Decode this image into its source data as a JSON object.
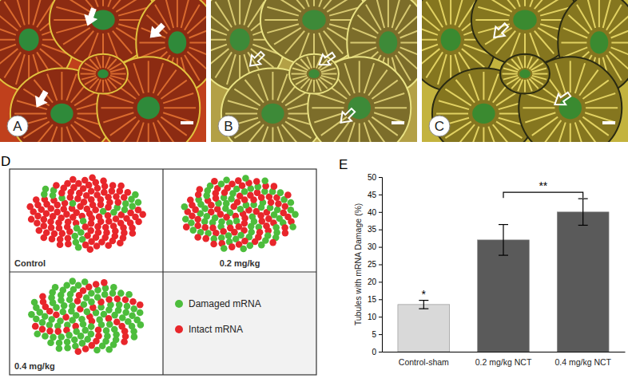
{
  "micrographs": [
    {
      "label": "A"
    },
    {
      "label": "B"
    },
    {
      "label": "C"
    }
  ],
  "schematic": {
    "label": "D",
    "groups": [
      {
        "name": "Control",
        "counts": [
          22,
          128
        ]
      },
      {
        "name": "0.2 mg/kg",
        "counts": [
          75,
          80
        ]
      },
      {
        "name": "0.4 mg/kg",
        "counts": [
          100,
          40
        ]
      }
    ],
    "legend": [
      {
        "name": "Damaged mRNA",
        "color": "#4dbd3c"
      },
      {
        "name": "Intact mRNA",
        "color": "#e8262b"
      }
    ]
  },
  "chart_data": {
    "type": "bar",
    "title": "E",
    "y_label": "Tubules with mRNA Damage (%)",
    "categories": [
      "Control-sham",
      "0.2 mg/kg NCT",
      "0.4 mg/kg NCT"
    ],
    "values": [
      13.5,
      32,
      40
    ],
    "errors": [
      1.2,
      4.4,
      3.8
    ],
    "colors": [
      "#d9d9d9",
      "#5a5a5a",
      "#5a5a5a"
    ],
    "ylim": [
      0,
      50
    ],
    "yticks": [
      0,
      5,
      10,
      15,
      20,
      25,
      30,
      35,
      40,
      45,
      50
    ],
    "grid": false,
    "annotations": [
      {
        "text": "*",
        "category": "Control-sham"
      },
      {
        "text": "**",
        "between": [
          "0.2 mg/kg NCT",
          "0.4 mg/kg NCT"
        ]
      }
    ]
  }
}
